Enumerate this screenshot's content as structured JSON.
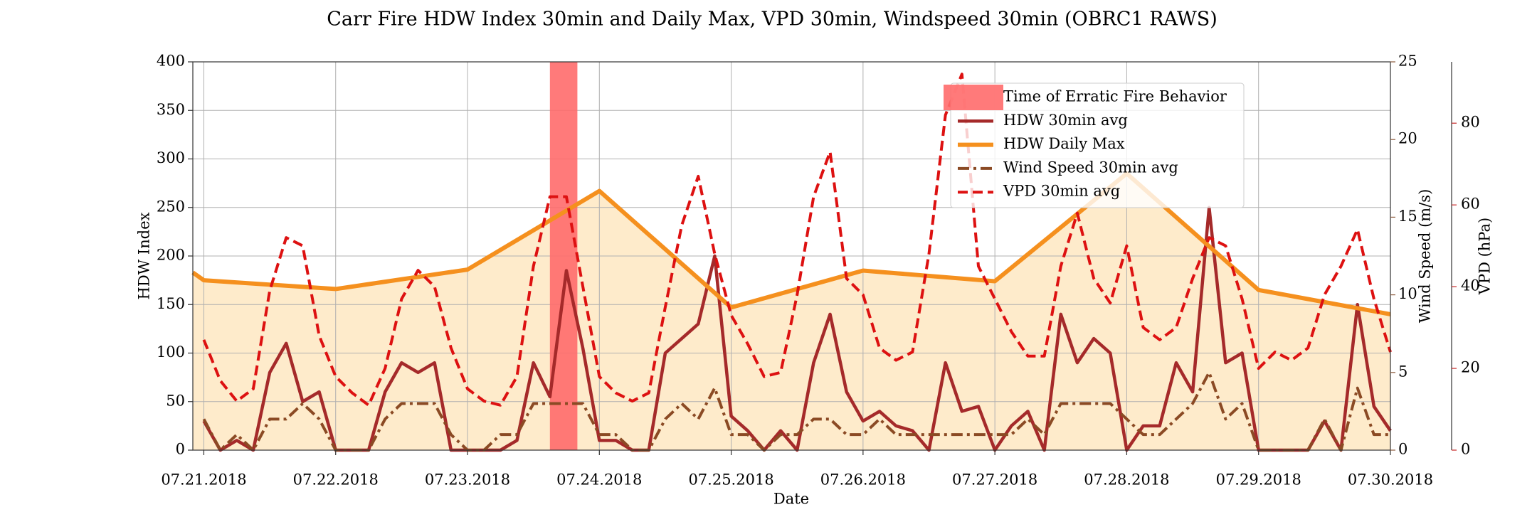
{
  "chart_data": {
    "type": "line",
    "title": "Carr Fire HDW Index 30min and Daily Max, VPD 30min, Windspeed 30min (OBRC1 RAWS)",
    "xlabel": "Date",
    "ylabel": "HDW Index",
    "y2label": "Wind Speed (m/s)",
    "y3label": "VPD (hPa)",
    "y2color": "#8b5a3c",
    "y3color": "#c62828",
    "grid": true,
    "legend": "upper right",
    "xlim": [
      "2018-07-20T22:00",
      "2018-07-30T00:00"
    ],
    "xticks": [
      {
        "value": "2018-07-21T00:00",
        "label": "07.21.2018"
      },
      {
        "value": "2018-07-22T00:00",
        "label": "07.22.2018"
      },
      {
        "value": "2018-07-23T00:00",
        "label": "07.23.2018"
      },
      {
        "value": "2018-07-24T00:00",
        "label": "07.24.2018"
      },
      {
        "value": "2018-07-25T00:00",
        "label": "07.25.2018"
      },
      {
        "value": "2018-07-26T00:00",
        "label": "07.26.2018"
      },
      {
        "value": "2018-07-27T00:00",
        "label": "07.27.2018"
      },
      {
        "value": "2018-07-28T00:00",
        "label": "07.28.2018"
      },
      {
        "value": "2018-07-29T00:00",
        "label": "07.29.2018"
      },
      {
        "value": "2018-07-30T00:00",
        "label": "07.30.2018"
      }
    ],
    "ylim": [
      0,
      400
    ],
    "yticks": [
      0,
      50,
      100,
      150,
      200,
      250,
      300,
      350,
      400
    ],
    "y2lim": [
      0,
      25
    ],
    "y2ticks": [
      0,
      5,
      10,
      15,
      20,
      25
    ],
    "y3lim": [
      0,
      95
    ],
    "y3ticks": [
      0,
      20,
      40,
      60,
      80
    ],
    "span": {
      "name": "Time of Erratic Fire Behavior",
      "start": "2018-07-23T15:00",
      "end": "2018-07-23T20:00",
      "color": "#ff6b6b"
    },
    "x": [
      "2018-07-21T00:00",
      "2018-07-21T03:00",
      "2018-07-21T06:00",
      "2018-07-21T09:00",
      "2018-07-21T12:00",
      "2018-07-21T15:00",
      "2018-07-21T18:00",
      "2018-07-21T21:00",
      "2018-07-22T00:00",
      "2018-07-22T03:00",
      "2018-07-22T06:00",
      "2018-07-22T09:00",
      "2018-07-22T12:00",
      "2018-07-22T15:00",
      "2018-07-22T18:00",
      "2018-07-22T21:00",
      "2018-07-23T00:00",
      "2018-07-23T03:00",
      "2018-07-23T06:00",
      "2018-07-23T09:00",
      "2018-07-23T12:00",
      "2018-07-23T15:00",
      "2018-07-23T18:00",
      "2018-07-23T21:00",
      "2018-07-24T00:00",
      "2018-07-24T03:00",
      "2018-07-24T06:00",
      "2018-07-24T09:00",
      "2018-07-24T12:00",
      "2018-07-24T15:00",
      "2018-07-24T18:00",
      "2018-07-24T21:00",
      "2018-07-25T00:00",
      "2018-07-25T03:00",
      "2018-07-25T06:00",
      "2018-07-25T09:00",
      "2018-07-25T12:00",
      "2018-07-25T15:00",
      "2018-07-25T18:00",
      "2018-07-25T21:00",
      "2018-07-26T00:00",
      "2018-07-26T03:00",
      "2018-07-26T06:00",
      "2018-07-26T09:00",
      "2018-07-26T12:00",
      "2018-07-26T15:00",
      "2018-07-26T18:00",
      "2018-07-26T21:00",
      "2018-07-27T00:00",
      "2018-07-27T03:00",
      "2018-07-27T06:00",
      "2018-07-27T09:00",
      "2018-07-27T12:00",
      "2018-07-27T15:00",
      "2018-07-27T18:00",
      "2018-07-27T21:00",
      "2018-07-28T00:00",
      "2018-07-28T03:00",
      "2018-07-28T06:00",
      "2018-07-28T09:00",
      "2018-07-28T12:00",
      "2018-07-28T15:00",
      "2018-07-28T18:00",
      "2018-07-28T21:00",
      "2018-07-29T00:00",
      "2018-07-29T03:00",
      "2018-07-29T06:00",
      "2018-07-29T09:00",
      "2018-07-29T12:00",
      "2018-07-29T15:00",
      "2018-07-29T18:00",
      "2018-07-29T21:00",
      "2018-07-30T00:00"
    ],
    "series": [
      {
        "name": "HDW 30min avg",
        "color": "#a52a2a",
        "width": 4.5,
        "values": [
          30,
          0,
          10,
          0,
          80,
          110,
          50,
          60,
          0,
          0,
          0,
          60,
          90,
          80,
          90,
          0,
          0,
          0,
          0,
          10,
          90,
          55,
          185,
          105,
          10,
          10,
          0,
          0,
          100,
          115,
          130,
          200,
          35,
          20,
          0,
          20,
          0,
          90,
          140,
          60,
          30,
          40,
          25,
          20,
          0,
          90,
          40,
          45,
          0,
          25,
          40,
          0,
          140,
          90,
          115,
          100,
          0,
          25,
          25,
          90,
          60,
          250,
          90,
          100,
          0,
          0,
          0,
          0,
          30,
          0,
          150,
          45,
          20
        ]
      },
      {
        "name": "HDW Daily Max",
        "color": "#f5901e",
        "fill": "#feebcb",
        "width": 6,
        "x": [
          "2018-07-20T22:00",
          "2018-07-21T00:00",
          "2018-07-22T00:00",
          "2018-07-23T00:00",
          "2018-07-24T00:00",
          "2018-07-25T00:00",
          "2018-07-26T00:00",
          "2018-07-27T00:00",
          "2018-07-28T00:00",
          "2018-07-29T00:00",
          "2018-07-30T00:00"
        ],
        "values": [
          183,
          175,
          166,
          186,
          267,
          147,
          185,
          174,
          285,
          165,
          140
        ]
      },
      {
        "name": "Wind Speed 30min avg",
        "color": "#8b4a24",
        "dash": "dashdot",
        "axis": "y2",
        "width": 4,
        "values": [
          2,
          0,
          1,
          0,
          2,
          2,
          3,
          2,
          0,
          0,
          0,
          2,
          3,
          3,
          3,
          1,
          0,
          0,
          1,
          1,
          3,
          3,
          3,
          3,
          1,
          1,
          0,
          0,
          2,
          3,
          2,
          4,
          1,
          1,
          0,
          1,
          1,
          2,
          2,
          1,
          1,
          2,
          1,
          1,
          1,
          1,
          1,
          1,
          1,
          1,
          2,
          1,
          3,
          3,
          3,
          3,
          2,
          1,
          1,
          2,
          3,
          5,
          2,
          3,
          0,
          0,
          0,
          0,
          2,
          0,
          4,
          1,
          1
        ]
      },
      {
        "name": "VPD 30min avg",
        "color": "#dd1111",
        "dash": "dashed",
        "axis": "y3",
        "width": 4,
        "values": [
          27,
          17,
          12,
          15,
          39,
          52,
          50,
          28,
          18,
          14,
          11,
          20,
          37,
          44,
          40,
          25,
          15,
          12,
          11,
          18,
          45,
          62,
          62,
          40,
          18,
          14,
          12,
          14,
          35,
          55,
          67,
          48,
          33,
          26,
          18,
          19,
          38,
          62,
          73,
          42,
          38,
          25,
          22,
          24,
          48,
          82,
          92,
          45,
          37,
          29,
          23,
          23,
          45,
          58,
          42,
          36,
          50,
          30,
          27,
          30,
          42,
          52,
          50,
          37,
          20,
          24,
          22,
          25,
          38,
          45,
          54,
          37,
          24
        ]
      }
    ]
  }
}
